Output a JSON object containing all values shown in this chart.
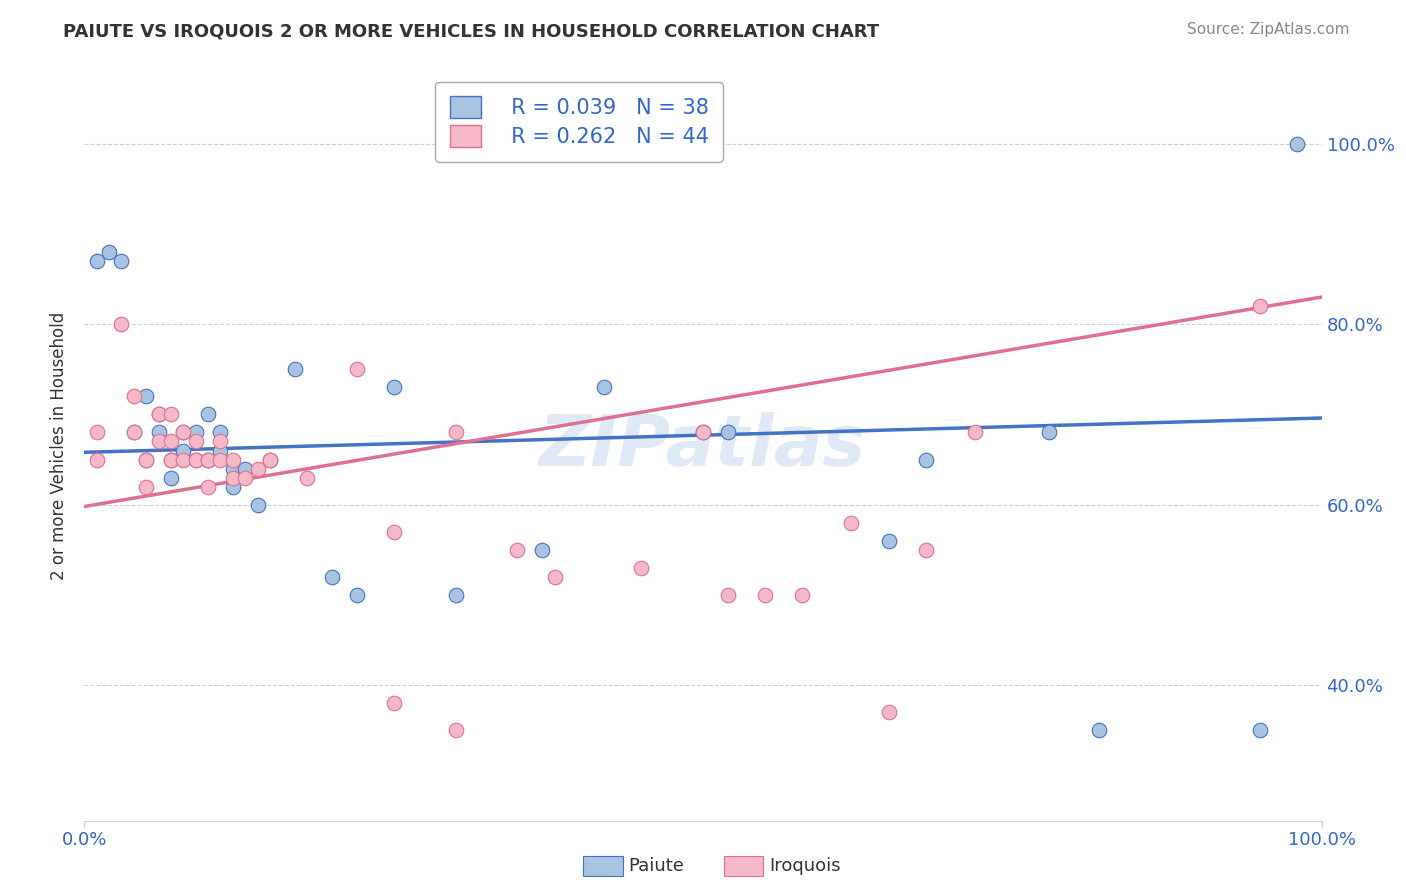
{
  "title": "PAIUTE VS IROQUOIS 2 OR MORE VEHICLES IN HOUSEHOLD CORRELATION CHART",
  "source": "Source: ZipAtlas.com",
  "ylabel": "2 or more Vehicles in Household",
  "xlim": [
    0.0,
    1.0
  ],
  "ylim": [
    0.25,
    1.08
  ],
  "y_tick_values": [
    0.4,
    0.6,
    0.8,
    1.0
  ],
  "y_tick_labels": [
    "40.0%",
    "60.0%",
    "80.0%",
    "100.0%"
  ],
  "legend_r_paiute": "R = 0.039",
  "legend_n_paiute": "N = 38",
  "legend_r_iroquois": "R = 0.262",
  "legend_n_iroquois": "N = 44",
  "paiute_color": "#a8c4e0",
  "iroquois_color": "#f4b8c8",
  "paiute_line_color": "#4472c4",
  "iroquois_line_color": "#e07090",
  "watermark": "ZIPatlas",
  "paiute_x": [
    0.01,
    0.02,
    0.03,
    0.04,
    0.05,
    0.05,
    0.06,
    0.06,
    0.07,
    0.07,
    0.08,
    0.08,
    0.09,
    0.09,
    0.1,
    0.1,
    0.11,
    0.11,
    0.12,
    0.12,
    0.13,
    0.14,
    0.15,
    0.17,
    0.2,
    0.22,
    0.25,
    0.3,
    0.37,
    0.42,
    0.5,
    0.52,
    0.65,
    0.68,
    0.78,
    0.82,
    0.95,
    0.98
  ],
  "paiute_y": [
    0.87,
    0.88,
    0.87,
    0.68,
    0.72,
    0.65,
    0.7,
    0.68,
    0.65,
    0.63,
    0.68,
    0.66,
    0.65,
    0.68,
    0.7,
    0.65,
    0.68,
    0.66,
    0.64,
    0.62,
    0.64,
    0.6,
    0.65,
    0.75,
    0.52,
    0.5,
    0.73,
    0.5,
    0.55,
    0.73,
    0.68,
    0.68,
    0.56,
    0.65,
    0.68,
    0.35,
    0.35,
    1.0
  ],
  "iroquois_x": [
    0.01,
    0.01,
    0.03,
    0.04,
    0.04,
    0.05,
    0.05,
    0.06,
    0.06,
    0.07,
    0.07,
    0.07,
    0.08,
    0.08,
    0.09,
    0.09,
    0.1,
    0.1,
    0.1,
    0.11,
    0.11,
    0.12,
    0.12,
    0.13,
    0.14,
    0.15,
    0.18,
    0.22,
    0.25,
    0.3,
    0.35,
    0.38,
    0.45,
    0.5,
    0.52,
    0.55,
    0.58,
    0.62,
    0.68,
    0.72,
    0.25,
    0.3,
    0.65,
    0.95
  ],
  "iroquois_y": [
    0.68,
    0.65,
    0.8,
    0.72,
    0.68,
    0.65,
    0.62,
    0.7,
    0.67,
    0.7,
    0.67,
    0.65,
    0.68,
    0.65,
    0.67,
    0.65,
    0.65,
    0.65,
    0.62,
    0.67,
    0.65,
    0.65,
    0.63,
    0.63,
    0.64,
    0.65,
    0.63,
    0.75,
    0.57,
    0.68,
    0.55,
    0.52,
    0.53,
    0.68,
    0.5,
    0.5,
    0.5,
    0.58,
    0.55,
    0.68,
    0.38,
    0.35,
    0.37,
    0.82
  ]
}
